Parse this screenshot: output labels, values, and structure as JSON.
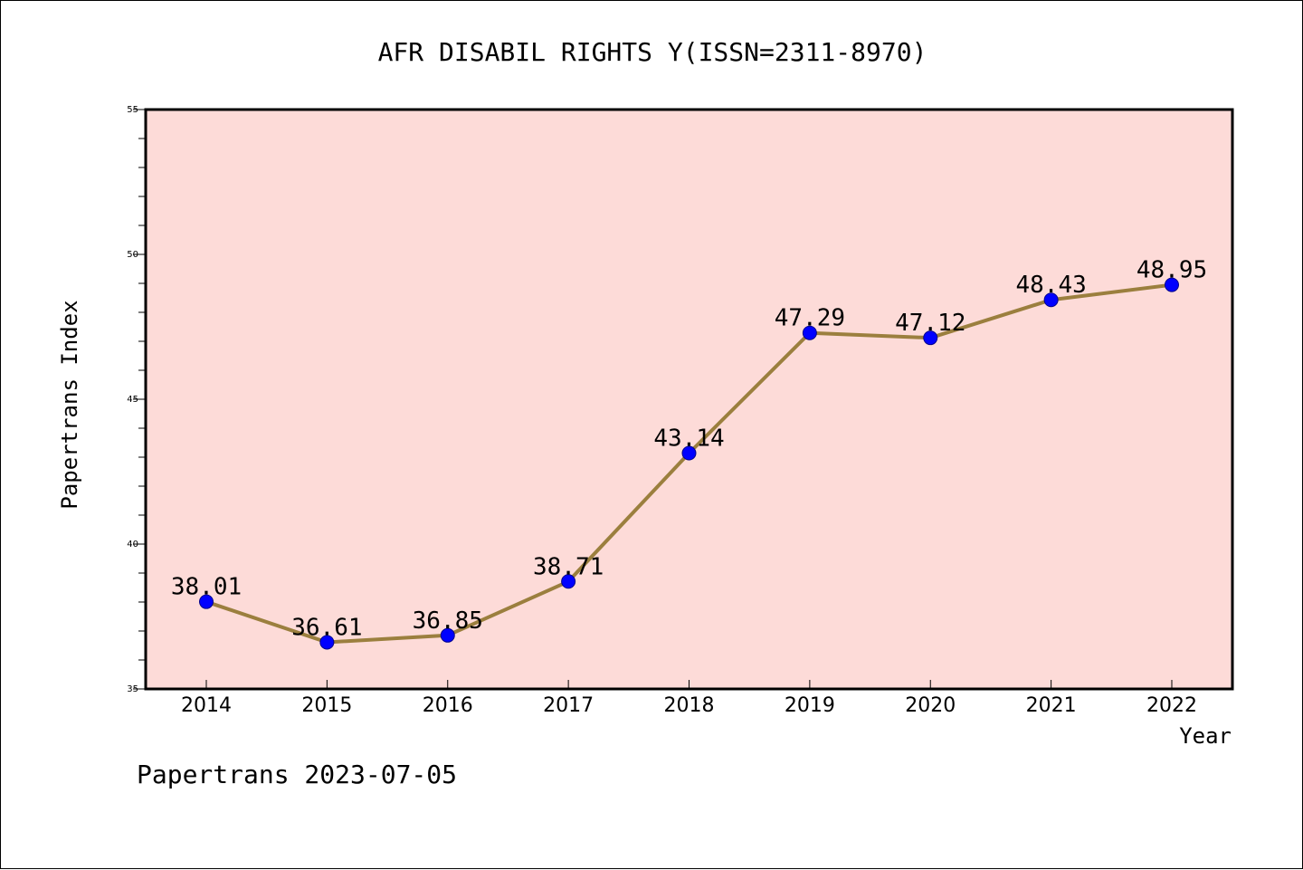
{
  "chart_data": {
    "type": "line",
    "title": "AFR DISABIL RIGHTS Y(ISSN=2311-8970)",
    "xlabel": "Year",
    "ylabel": "Papertrans Index",
    "categories": [
      "2014",
      "2015",
      "2016",
      "2017",
      "2018",
      "2019",
      "2020",
      "2021",
      "2022"
    ],
    "series": [
      {
        "values": [
          38.01,
          36.61,
          36.85,
          38.71,
          43.14,
          47.29,
          47.12,
          48.43,
          48.95
        ],
        "labels": [
          "38.01",
          "36.61",
          "36.85",
          "38.71",
          "43.14",
          "47.29",
          "47.12",
          "48.43",
          "48.95"
        ]
      }
    ],
    "ylim": [
      35,
      55
    ],
    "yticks": [
      "35",
      "40",
      "45",
      "50",
      "55"
    ],
    "grid": false,
    "colors": {
      "plot_background": "#fddbd8",
      "line": "#9b7f3e",
      "marker": "#0000ff"
    }
  },
  "footer": {
    "text": "Papertrans 2023-07-05"
  }
}
